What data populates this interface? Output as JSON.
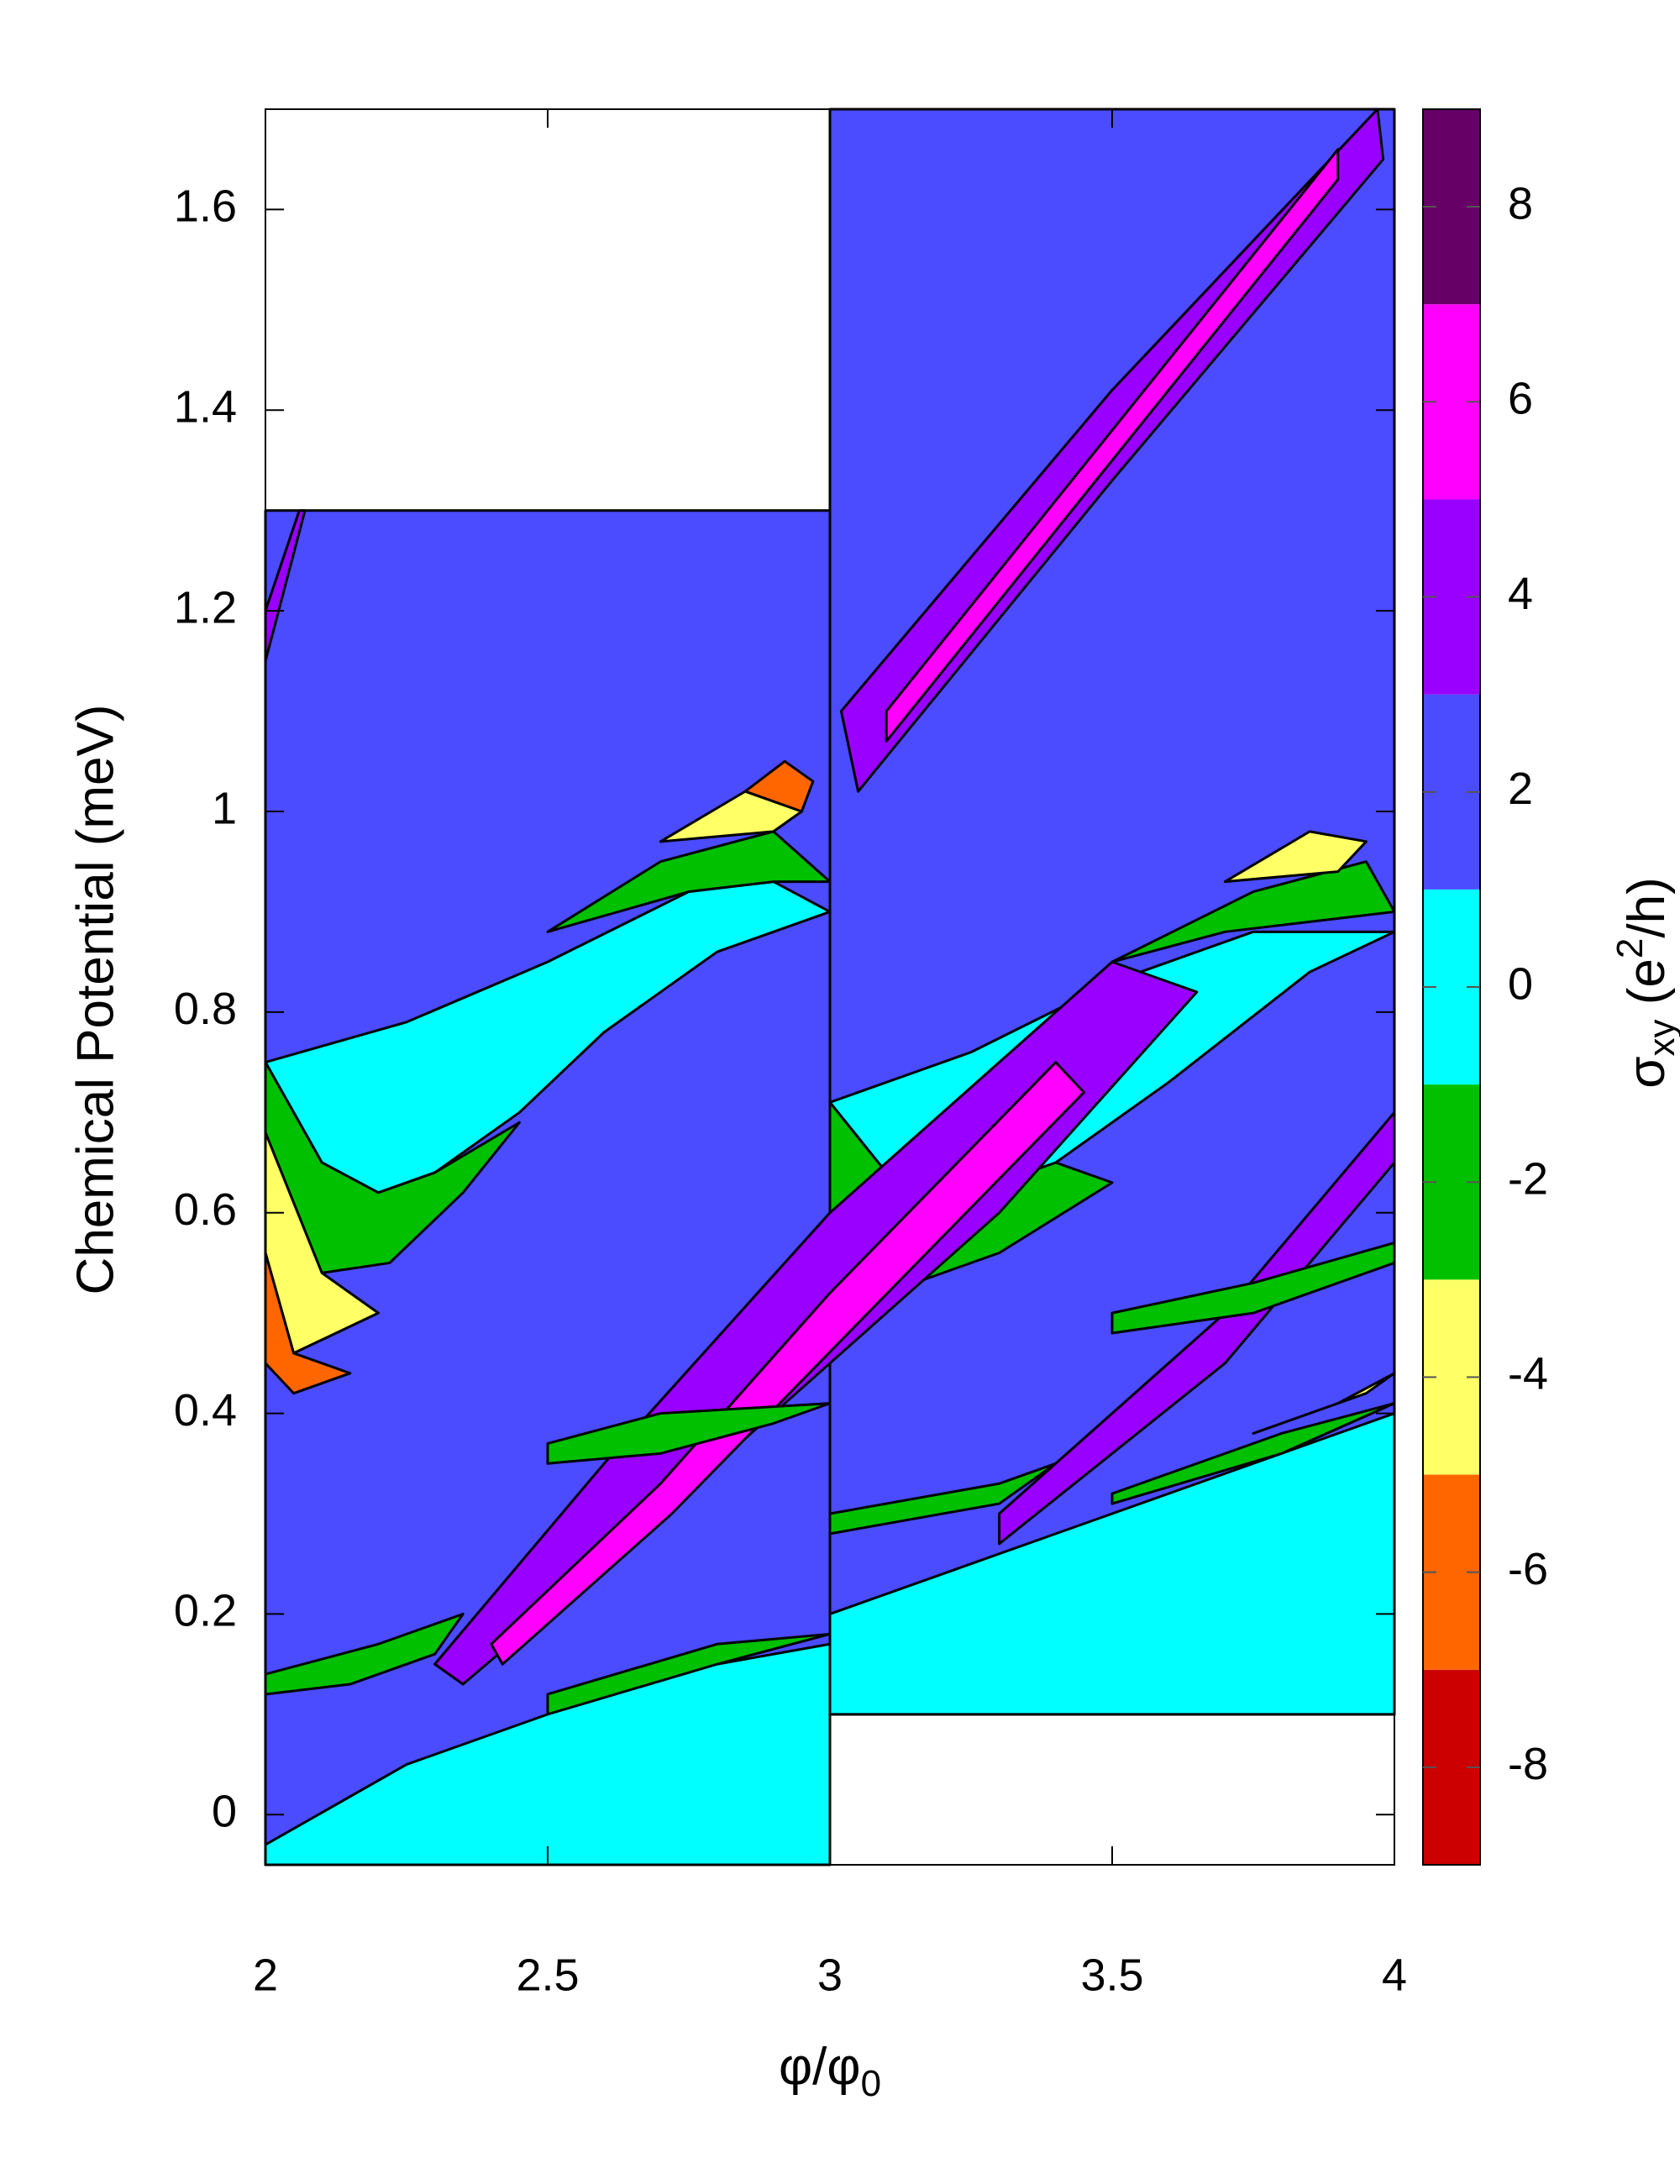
{
  "chart_data": {
    "type": "heatmap",
    "x_label": [
      "φ/φ",
      "0"
    ],
    "y_label": "Chemical Potential (meV)",
    "xlim": [
      2,
      4
    ],
    "xticks": [
      2,
      2.5,
      3,
      3.5,
      4
    ],
    "ylim": [
      -0.05,
      1.7
    ],
    "yticks": [
      0,
      0.2,
      0.4,
      0.6,
      0.8,
      1,
      1.2,
      1.4,
      1.6
    ],
    "colorbar": {
      "label": [
        "σ",
        "xy",
        " (e",
        "2",
        "/h)"
      ],
      "zlim": [
        -9,
        9
      ],
      "zticks": [
        -8,
        -6,
        -4,
        -2,
        0,
        2,
        4,
        6,
        8
      ],
      "colors": [
        "#cc0000",
        "#ff6600",
        "#ffff66",
        "#00c000",
        "#00ffff",
        "#4b4bff",
        "#9900ff",
        "#ff00ff",
        "#660066"
      ]
    },
    "regions": [
      {
        "value": 2,
        "x": [
          2,
          3,
          3,
          2
        ],
        "y": [
          -0.05,
          -0.05,
          1.3,
          1.3
        ]
      },
      {
        "value": 2,
        "x": [
          3,
          4,
          4,
          3
        ],
        "y": [
          0.1,
          0.1,
          1.7,
          1.7
        ]
      },
      {
        "value": 0,
        "x": [
          2,
          3,
          3,
          2.7,
          2.5,
          2.25,
          2
        ],
        "y": [
          -0.05,
          -0.05,
          0.17,
          0.14,
          0.1,
          0.05,
          -0.03
        ]
      },
      {
        "value": 0,
        "x": [
          3,
          4,
          4,
          3.7,
          3.5,
          3.25,
          3
        ],
        "y": [
          0.1,
          0.1,
          0.4,
          0.34,
          0.3,
          0.25,
          0.2
        ]
      },
      {
        "value": 0,
        "x": [
          2,
          2.25,
          2.5,
          2.75,
          2.9,
          3,
          2.8,
          2.6,
          2.45,
          2.3,
          2.2,
          2.1
        ],
        "y": [
          0.75,
          0.79,
          0.85,
          0.92,
          0.93,
          0.9,
          0.86,
          0.78,
          0.7,
          0.64,
          0.62,
          0.65
        ]
      },
      {
        "value": 0,
        "x": [
          3,
          3.25,
          3.5,
          3.75,
          4,
          3.85,
          3.6,
          3.4,
          3.25,
          3.1
        ],
        "y": [
          0.71,
          0.76,
          0.83,
          0.88,
          0.88,
          0.84,
          0.73,
          0.65,
          0.62,
          0.64
        ]
      },
      {
        "value": -2,
        "x": [
          2,
          2.1,
          2.2,
          2.3,
          2.45,
          2.35,
          2.22,
          2.1,
          2
        ],
        "y": [
          0.75,
          0.65,
          0.62,
          0.64,
          0.69,
          0.62,
          0.55,
          0.54,
          0.68
        ]
      },
      {
        "value": -4,
        "x": [
          2,
          2.1,
          2.2,
          2.05,
          2
        ],
        "y": [
          0.68,
          0.54,
          0.5,
          0.46,
          0.56
        ]
      },
      {
        "value": -6,
        "x": [
          2,
          2.05,
          2.15,
          2.05,
          2
        ],
        "y": [
          0.56,
          0.46,
          0.44,
          0.42,
          0.45
        ]
      },
      {
        "value": -2,
        "x": [
          2.5,
          2.7,
          2.9,
          3,
          2.9,
          2.75
        ],
        "y": [
          0.88,
          0.95,
          0.98,
          0.93,
          0.93,
          0.92
        ]
      },
      {
        "value": -4,
        "x": [
          2.7,
          2.85,
          2.95,
          2.9
        ],
        "y": [
          0.97,
          1.02,
          1.0,
          0.98
        ]
      },
      {
        "value": -6,
        "x": [
          2.85,
          2.92,
          2.97,
          2.95
        ],
        "y": [
          1.02,
          1.05,
          1.03,
          1.0
        ]
      },
      {
        "value": -2,
        "x": [
          3,
          3.1,
          3.25,
          3.4,
          3.5,
          3.3,
          3.15,
          3
        ],
        "y": [
          0.71,
          0.64,
          0.62,
          0.65,
          0.63,
          0.56,
          0.53,
          0.6
        ]
      },
      {
        "value": -2,
        "x": [
          3.5,
          3.75,
          3.95,
          4,
          3.85,
          3.7
        ],
        "y": [
          0.85,
          0.92,
          0.95,
          0.9,
          0.89,
          0.88
        ]
      },
      {
        "value": -4,
        "x": [
          3.7,
          3.85,
          3.95,
          3.9
        ],
        "y": [
          0.93,
          0.98,
          0.97,
          0.94
        ]
      },
      {
        "value": 4,
        "x": [
          2.3,
          2.6,
          3,
          3.5,
          3.65,
          3.3,
          3,
          2.6,
          2.35
        ],
        "y": [
          0.15,
          0.35,
          0.6,
          0.85,
          0.82,
          0.6,
          0.45,
          0.25,
          0.13
        ]
      },
      {
        "value": 6,
        "x": [
          2.4,
          2.7,
          3,
          3.4,
          3.45,
          3.05,
          2.72,
          2.42
        ],
        "y": [
          0.17,
          0.33,
          0.52,
          0.75,
          0.72,
          0.49,
          0.3,
          0.15
        ]
      },
      {
        "value": 4,
        "x": [
          3.02,
          3.5,
          3.97,
          3.98,
          3.5,
          3.05
        ],
        "y": [
          1.1,
          1.42,
          1.7,
          1.65,
          1.33,
          1.02
        ]
      },
      {
        "value": 6,
        "x": [
          3.1,
          3.5,
          3.9,
          3.9,
          3.5,
          3.1
        ],
        "y": [
          1.1,
          1.38,
          1.66,
          1.63,
          1.35,
          1.07
        ]
      },
      {
        "value": 4,
        "x": [
          2,
          2.07,
          2.06,
          2
        ],
        "y": [
          1.15,
          1.3,
          1.3,
          1.2
        ]
      },
      {
        "value": 4,
        "x": [
          3.3,
          3.7,
          4,
          4,
          3.7,
          3.3
        ],
        "y": [
          0.3,
          0.5,
          0.7,
          0.65,
          0.45,
          0.27
        ]
      },
      {
        "value": -2,
        "x": [
          2,
          2.2,
          2.35,
          2.3,
          2.15,
          2
        ],
        "y": [
          0.14,
          0.17,
          0.2,
          0.16,
          0.13,
          0.12
        ]
      },
      {
        "value": -2,
        "x": [
          2.5,
          2.8,
          3,
          2.8,
          2.5
        ],
        "y": [
          0.12,
          0.17,
          0.18,
          0.15,
          0.1
        ]
      },
      {
        "value": -2,
        "x": [
          2.5,
          2.7,
          3,
          2.9,
          2.7,
          2.5
        ],
        "y": [
          0.37,
          0.4,
          0.41,
          0.39,
          0.36,
          0.35
        ]
      },
      {
        "value": -2,
        "x": [
          3,
          3.3,
          3.4,
          3.3,
          3
        ],
        "y": [
          0.3,
          0.33,
          0.35,
          0.31,
          0.28
        ]
      },
      {
        "value": -2,
        "x": [
          3.5,
          3.75,
          4,
          4,
          3.75,
          3.5
        ],
        "y": [
          0.5,
          0.53,
          0.57,
          0.55,
          0.5,
          0.48
        ]
      },
      {
        "value": -2,
        "x": [
          3.5,
          3.8,
          4,
          3.8,
          3.5
        ],
        "y": [
          0.32,
          0.38,
          0.41,
          0.36,
          0.31
        ]
      },
      {
        "value": -4,
        "x": [
          3.75,
          3.95,
          4,
          3.9
        ],
        "y": [
          0.38,
          0.42,
          0.44,
          0.41
        ]
      }
    ]
  }
}
